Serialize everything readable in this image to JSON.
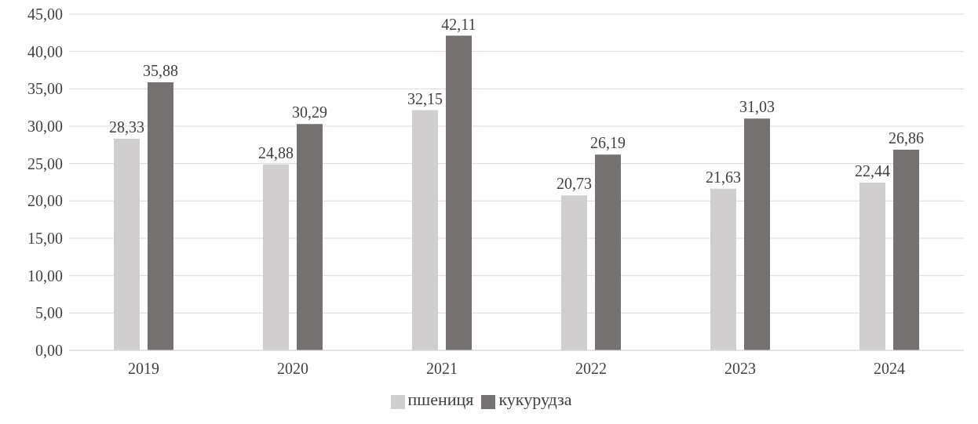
{
  "chart_data": {
    "type": "bar",
    "categories": [
      "2019",
      "2020",
      "2021",
      "2022",
      "2023",
      "2024"
    ],
    "series": [
      {
        "name": "пшениця",
        "color": "#d0cece",
        "values": [
          28.33,
          24.88,
          32.15,
          20.73,
          21.63,
          22.44
        ],
        "value_labels": [
          "28,33",
          "24,88",
          "32,15",
          "20,73",
          "21,63",
          "22,44"
        ]
      },
      {
        "name": "кукурудза",
        "color": "#767171",
        "values": [
          35.88,
          30.29,
          42.11,
          26.19,
          31.03,
          26.86
        ],
        "value_labels": [
          "35,88",
          "30,29",
          "42,11",
          "26,19",
          "31,03",
          "26,86"
        ]
      }
    ],
    "ylim": [
      0,
      45
    ],
    "yticks": [
      {
        "value": 0,
        "label": "0,00"
      },
      {
        "value": 5,
        "label": "5,00"
      },
      {
        "value": 10,
        "label": "10,00"
      },
      {
        "value": 15,
        "label": "15,00"
      },
      {
        "value": 20,
        "label": "20,00"
      },
      {
        "value": 25,
        "label": "25,00"
      },
      {
        "value": 30,
        "label": "30,00"
      },
      {
        "value": 35,
        "label": "35,00"
      },
      {
        "value": 40,
        "label": "40,00"
      },
      {
        "value": 45,
        "label": "45,00"
      }
    ],
    "grid": "y",
    "legend": "bottom"
  }
}
